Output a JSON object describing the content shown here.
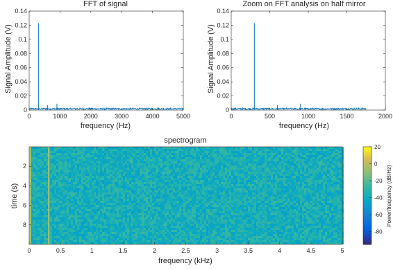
{
  "chart_data": [
    {
      "type": "line",
      "title": "FFT of signal",
      "xlabel": "frequency (Hz)",
      "ylabel": "Signal Amplitude (V)",
      "xlim": [
        0,
        5000
      ],
      "ylim": [
        0,
        0.14
      ],
      "xticks": [
        "0",
        "1000",
        "2000",
        "3000",
        "4000",
        "5000"
      ],
      "yticks": [
        "0",
        "0.02",
        "0.04",
        "0.06",
        "0.08",
        "0.1",
        "0.12",
        "0.14"
      ],
      "grid": false,
      "color": "#0072bd",
      "noise_floor": 0.002,
      "peaks": [
        {
          "x": 300,
          "y": 0.123
        },
        {
          "x": 600,
          "y": 0.007
        },
        {
          "x": 900,
          "y": 0.009
        }
      ]
    },
    {
      "type": "line",
      "title": "Zoom on FFT analysis on half mirror",
      "xlabel": "frequency (Hz)",
      "ylabel": "Signal Amplitude (V)",
      "xlim": [
        0,
        2000
      ],
      "ylim": [
        0,
        0.14
      ],
      "xticks": [
        "0",
        "500",
        "1000",
        "1500",
        "2000"
      ],
      "yticks": [
        "0",
        "0.02",
        "0.04",
        "0.06",
        "0.08",
        "0.1",
        "0.12",
        "0.14"
      ],
      "grid": false,
      "color": "#0072bd",
      "data_end_x": 1750,
      "noise_floor": 0.002,
      "peaks": [
        {
          "x": 300,
          "y": 0.123
        },
        {
          "x": 600,
          "y": 0.007
        },
        {
          "x": 900,
          "y": 0.009
        }
      ]
    },
    {
      "type": "heatmap",
      "title": "spectrogram",
      "xlabel": "frequency (kHz)",
      "ylabel": "time (s)",
      "xlim": [
        0,
        5
      ],
      "ylim": [
        0,
        10
      ],
      "xticks": [
        "0",
        "0.5",
        "1",
        "1.5",
        "2",
        "2.5",
        "3",
        "3.5",
        "4",
        "4.5",
        "5"
      ],
      "yticks": [
        "2",
        "4",
        "6",
        "8"
      ],
      "colorbar": {
        "label": "Power/frequency (dB/Hz)",
        "range": [
          -95,
          20
        ],
        "ticks": [
          "20",
          "0",
          "-20",
          "-40",
          "-60",
          "-80"
        ],
        "colormap": "parula"
      },
      "background_level_db": -37,
      "bright_lines": [
        {
          "freq_khz": 0.0,
          "level_db": 12
        },
        {
          "freq_khz": 0.3,
          "level_db": -5
        }
      ]
    }
  ]
}
